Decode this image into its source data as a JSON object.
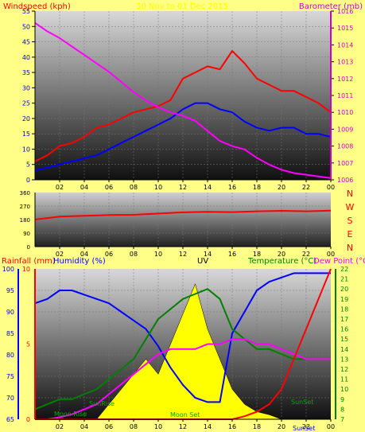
{
  "panel1": {
    "title_left": "Windspeed (kph)",
    "title_center": "30 Nov  to  01 Dec 2015",
    "title_right": "Barometer (mb)",
    "wind_ticks": [
      "0",
      "5",
      "10",
      "15",
      "20",
      "25",
      "30",
      "35",
      "40",
      "45",
      "50",
      "55"
    ],
    "baro_ticks": [
      "1006",
      "1007",
      "1008",
      "1009",
      "1010",
      "1011",
      "1012",
      "1013",
      "1014",
      "1015",
      "1016"
    ],
    "x_ticks": [
      "02",
      "04",
      "06",
      "08",
      "10",
      "12",
      "14",
      "16",
      "18",
      "20",
      "22",
      "00"
    ],
    "chart_data": {
      "type": "line",
      "x": [
        0,
        1,
        2,
        3,
        4,
        5,
        6,
        7,
        8,
        9,
        10,
        11,
        12,
        13,
        14,
        15,
        16,
        17,
        18,
        19,
        20,
        21,
        22,
        23,
        24
      ],
      "series": [
        {
          "name": "Windspeed gust",
          "axis": "left",
          "color": "#ff0000",
          "values": [
            6,
            8,
            11,
            12,
            14,
            17,
            18,
            20,
            22,
            23,
            24,
            26,
            33,
            35,
            37,
            36,
            42,
            38,
            33,
            31,
            29,
            29,
            27,
            25,
            22
          ]
        },
        {
          "name": "Windspeed average",
          "axis": "left",
          "color": "#0000ff",
          "values": [
            3,
            4,
            5,
            6,
            7,
            8,
            10,
            12,
            14,
            16,
            18,
            20,
            23,
            25,
            25,
            23,
            22,
            19,
            17,
            16,
            17,
            17,
            15,
            15,
            14
          ]
        },
        {
          "name": "Barometer",
          "axis": "right",
          "color": "#ff00ff",
          "values": [
            1015.3,
            1014.8,
            1014.4,
            1013.9,
            1013.4,
            1012.9,
            1012.4,
            1011.8,
            1011.2,
            1010.7,
            1010.3,
            1010.0,
            1009.8,
            1009.5,
            1008.9,
            1008.3,
            1008.0,
            1007.8,
            1007.3,
            1006.9,
            1006.6,
            1006.4,
            1006.3,
            1006.2,
            1006.1
          ]
        }
      ],
      "ylim_left": [
        0,
        55
      ],
      "ylim_right": [
        1006,
        1016
      ]
    }
  },
  "panel2": {
    "dir_ticks": [
      "0",
      "90",
      "180",
      "270",
      "360"
    ],
    "x_ticks": [
      "02",
      "04",
      "06",
      "08",
      "10",
      "12",
      "14",
      "16",
      "18",
      "20",
      "22",
      "00"
    ],
    "dir_labels": [
      "N",
      "W",
      "S",
      "E",
      "N"
    ],
    "chart_data": {
      "type": "line",
      "series": [
        {
          "name": "Wind direction",
          "color": "#ff0000",
          "x": [
            0,
            2,
            4,
            6,
            8,
            10,
            12,
            14,
            16,
            18,
            20,
            22,
            24
          ],
          "values": [
            180,
            200,
            205,
            210,
            212,
            220,
            228,
            232,
            230,
            235,
            238,
            235,
            240
          ]
        }
      ],
      "ylim": [
        0,
        360
      ]
    }
  },
  "panel3": {
    "title_rain": "Rainfall (mm)",
    "title_humidity": "Humidity (%)",
    "title_uv": "UV",
    "title_temp": "Temperature (°C)",
    "title_dew": "Dew Point (°C)",
    "humidity_ticks": [
      "65",
      "70",
      "75",
      "80",
      "85",
      "90",
      "95",
      "100"
    ],
    "rain_ticks": [
      "0",
      "5",
      "10"
    ],
    "temp_ticks": [
      "7",
      "8",
      "9",
      "10",
      "11",
      "12",
      "13",
      "14",
      "15",
      "16",
      "17",
      "18",
      "19",
      "20",
      "21",
      "22"
    ],
    "x_ticks": [
      "02",
      "04",
      "06",
      "08",
      "10",
      "12",
      "14",
      "16",
      "18",
      "20",
      "22",
      "00"
    ],
    "annotations": {
      "moon_rise": "Moon Rise",
      "sun_rise": "SunRise",
      "moon_set": "Moon Set",
      "sun_set": "SunSet",
      "sun_set_axis": "SunSet"
    },
    "chart_data": {
      "type": "line",
      "series": [
        {
          "name": "Humidity",
          "axis": "humidity",
          "color": "#0000ff",
          "x": [
            0,
            1,
            2,
            3,
            4,
            5,
            6,
            7,
            8,
            9,
            10,
            11,
            12,
            13,
            14,
            15,
            16,
            17,
            18,
            19,
            20,
            21,
            22,
            23,
            24
          ],
          "values": [
            92,
            93,
            95,
            95,
            94,
            93,
            92,
            90,
            88,
            86,
            82,
            77,
            73,
            70,
            69,
            69,
            85,
            90,
            95,
            97,
            98,
            99,
            99,
            99,
            99
          ]
        },
        {
          "name": "Temperature",
          "axis": "temp",
          "color": "#008000",
          "x": [
            0,
            1,
            2,
            3,
            4,
            5,
            6,
            7,
            8,
            9,
            10,
            11,
            12,
            13,
            14,
            15,
            16,
            17,
            18,
            19,
            20,
            21,
            22,
            23,
            24
          ],
          "values": [
            8,
            8.5,
            9,
            9,
            9.5,
            10,
            11,
            12,
            13,
            15,
            17,
            18,
            19,
            19.5,
            20,
            19,
            16,
            15,
            14,
            14,
            13.5,
            13,
            13,
            13,
            13
          ]
        },
        {
          "name": "Dew Point",
          "axis": "temp",
          "color": "#ff00ff",
          "x": [
            0,
            1,
            2,
            3,
            4,
            5,
            6,
            7,
            8,
            9,
            10,
            11,
            12,
            13,
            14,
            15,
            16,
            17,
            18,
            19,
            20,
            21,
            22,
            23,
            24
          ],
          "values": [
            7,
            7,
            7.2,
            7.5,
            8,
            8.5,
            9.5,
            10.5,
            11.5,
            12.5,
            13.5,
            14,
            14,
            14,
            14.5,
            14.5,
            15,
            15,
            14.5,
            14.5,
            14,
            13.5,
            13,
            13,
            13
          ]
        },
        {
          "name": "Rainfall",
          "axis": "rain",
          "color": "#ff0000",
          "x": [
            0,
            2,
            4,
            6,
            8,
            10,
            12,
            14,
            16,
            17,
            18,
            19,
            20,
            21,
            22,
            23,
            24
          ],
          "values": [
            0,
            0,
            0,
            0,
            0,
            0,
            0,
            0,
            0,
            0.2,
            0.5,
            1,
            2,
            4,
            6,
            8,
            10
          ]
        },
        {
          "name": "UV",
          "axis": "rain",
          "color": "#ffff00",
          "x": [
            5,
            6,
            7,
            8,
            9,
            10,
            11,
            12,
            13,
            14,
            15,
            16,
            17,
            18,
            19,
            20
          ],
          "values": [
            0,
            1,
            2,
            3,
            4,
            3,
            5,
            7,
            9,
            6,
            4,
            2,
            1,
            0.5,
            0.3,
            0
          ]
        }
      ],
      "humidity_range": [
        65,
        100
      ],
      "rain_range": [
        0,
        10
      ],
      "temp_range": [
        7,
        22
      ]
    }
  },
  "colors": {
    "background": "#ffff88",
    "wind_title": "#ff0000",
    "baro_title": "#cc00cc",
    "date_title": "#ffff00",
    "rain_title": "#ff0000",
    "humidity_title": "#0000ff",
    "uv_title": "#000000",
    "temp_title": "#008000",
    "dew_title": "#ff00ff",
    "dir_letters": "#ff0000"
  }
}
